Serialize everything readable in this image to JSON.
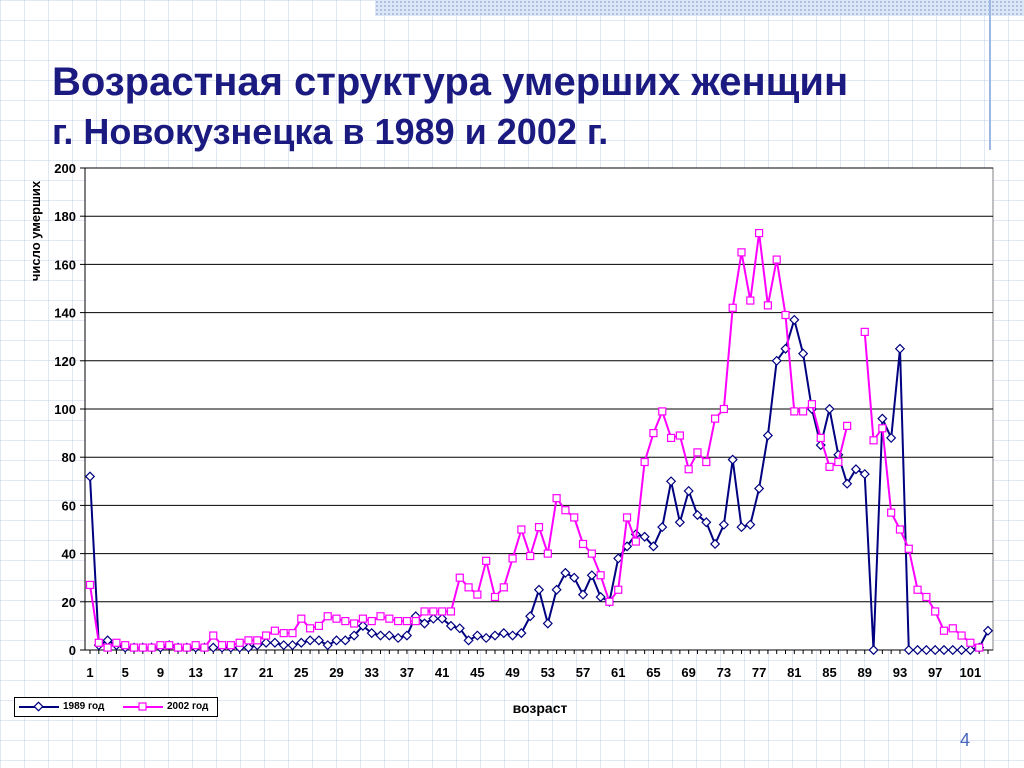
{
  "title": "Возрастная структура умерших женщин",
  "subtitle": "г. Новокузнецка в 1989 и 2002 г.",
  "page_number": "4",
  "chart_data": {
    "type": "line",
    "xlabel": "возраст",
    "ylabel": "число умерших",
    "ylim": [
      0,
      200
    ],
    "y_ticks": [
      0,
      20,
      40,
      60,
      80,
      100,
      120,
      140,
      160,
      180,
      200
    ],
    "x_tick_labels": [
      "1",
      "5",
      "9",
      "13",
      "17",
      "21",
      "25",
      "29",
      "33",
      "37",
      "41",
      "45",
      "49",
      "53",
      "57",
      "61",
      "65",
      "69",
      "73",
      "77",
      "81",
      "85",
      "89",
      "93",
      "97",
      "101"
    ],
    "x_start": 1,
    "grid": "horizontal",
    "legend_position": "bottom-left",
    "series": [
      {
        "name": "1989 год",
        "color": "#000080",
        "marker": "diamond",
        "values": [
          72,
          2,
          4,
          2,
          1,
          1,
          1,
          1,
          1,
          2,
          1,
          1,
          1,
          1,
          1,
          1,
          1,
          1,
          1,
          2,
          3,
          3,
          2,
          2,
          3,
          4,
          4,
          2,
          4,
          4,
          6,
          10,
          7,
          6,
          6,
          5,
          6,
          14,
          11,
          13,
          13,
          10,
          9,
          4,
          6,
          5,
          6,
          7,
          6,
          7,
          14,
          25,
          11,
          25,
          32,
          30,
          23,
          31,
          22,
          20,
          38,
          43,
          48,
          47,
          43,
          51,
          70,
          53,
          66,
          56,
          53,
          44,
          52,
          79,
          51,
          52,
          67,
          89,
          120,
          125,
          137,
          123,
          100,
          85,
          100,
          81,
          69,
          75,
          73,
          0,
          96,
          88,
          125,
          0,
          0,
          0,
          0,
          0,
          0,
          0,
          0,
          1,
          8
        ]
      },
      {
        "name": "2002 год",
        "color": "#ff00ff",
        "marker": "square",
        "values": [
          27,
          3,
          1,
          3,
          2,
          1,
          1,
          1,
          2,
          2,
          1,
          1,
          2,
          1,
          6,
          2,
          2,
          3,
          4,
          4,
          6,
          8,
          7,
          7,
          13,
          9,
          10,
          14,
          13,
          12,
          11,
          13,
          12,
          14,
          13,
          12,
          12,
          12,
          16,
          16,
          16,
          16,
          30,
          26,
          23,
          37,
          22,
          26,
          38,
          50,
          39,
          51,
          40,
          63,
          58,
          55,
          44,
          40,
          31,
          20,
          25,
          55,
          45,
          78,
          90,
          99,
          88,
          89,
          75,
          82,
          78,
          96,
          100,
          142,
          165,
          145,
          173,
          143,
          162,
          139,
          99,
          99,
          102,
          88,
          76,
          78,
          93,
          null,
          132,
          87,
          92,
          57,
          50,
          42,
          25,
          22,
          16,
          8,
          9,
          6,
          3,
          1
        ]
      }
    ]
  }
}
